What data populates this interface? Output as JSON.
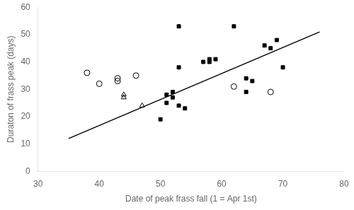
{
  "chart_data": {
    "type": "scatter",
    "xlabel": "Date of peak frass fall (1 = Apr 1st)",
    "ylabel": "Duraton of frass peak (days)",
    "xlim": [
      30,
      80
    ],
    "ylim": [
      0,
      60
    ],
    "xticks": [
      30,
      40,
      50,
      60,
      70,
      80
    ],
    "yticks": [
      0,
      10,
      20,
      30,
      40,
      50,
      60
    ],
    "grid": false,
    "series": [
      {
        "type": "scatter",
        "marker": "square",
        "color": "#000000",
        "x": [
          50,
          51,
          51,
          52,
          52,
          53,
          53,
          53,
          54,
          57,
          58,
          58,
          59,
          62,
          64,
          64,
          65,
          67,
          68,
          69,
          70
        ],
        "values": [
          19,
          25,
          28,
          29,
          27,
          24,
          38,
          53,
          23,
          40,
          41,
          40,
          41,
          53,
          29,
          34,
          33,
          46,
          45,
          48,
          38
        ]
      },
      {
        "type": "scatter",
        "marker": "circle-open",
        "color": "#000000",
        "x": [
          38,
          40,
          43,
          43,
          46,
          62,
          68
        ],
        "values": [
          36,
          32,
          33,
          34,
          35,
          31,
          29
        ]
      },
      {
        "type": "scatter",
        "marker": "triangle-open",
        "color": "#000000",
        "x": [
          44,
          44,
          47
        ],
        "values": [
          27,
          28,
          24
        ]
      },
      {
        "type": "line",
        "line_style": "solid",
        "color": "#000000",
        "x": [
          35,
          76
        ],
        "values": [
          11.985,
          50.976
        ]
      }
    ]
  }
}
